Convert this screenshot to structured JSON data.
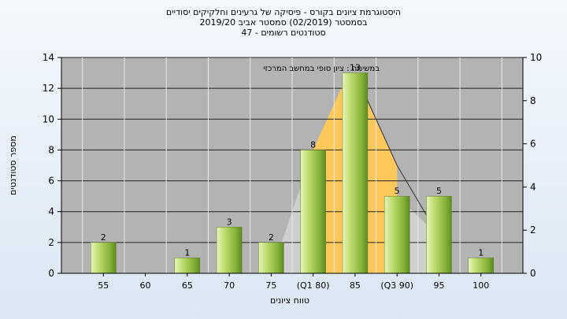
{
  "chart_data": {
    "type": "bar",
    "title_lines": [
      "היסטוגרמת ציונים בקורס - פיסיקה של גרעינים וחלקיקים יסודיים",
      "בסמסטר  (02/2019)  סמסטר אביב 2019/20",
      "סטודנטים רשומים - 47"
    ],
    "annotation": "במשימה : ציון סופי במחשב המרכזי",
    "categories": [
      "55",
      "60",
      "65",
      "70",
      "75",
      "(Q1 80)",
      "85",
      "(Q3 90)",
      "95",
      "100"
    ],
    "values": [
      2,
      0,
      1,
      3,
      2,
      8,
      13,
      5,
      5,
      1
    ],
    "ylabel": "מספר סטודנטים",
    "xlabel": "טווח ציונים",
    "ylim": [
      0,
      14
    ],
    "y_ticks": [
      0,
      2,
      4,
      6,
      8,
      10,
      12,
      14
    ],
    "y2lim": [
      0,
      10
    ],
    "y2_ticks": [
      0,
      2,
      4,
      6,
      8,
      10
    ],
    "grid": true,
    "colors": {
      "plot_bg": "#b3b3b3",
      "bar": "#9bc34a",
      "quartile_fill": "#ffc85a",
      "range_fill": "#cfcfcf"
    }
  }
}
